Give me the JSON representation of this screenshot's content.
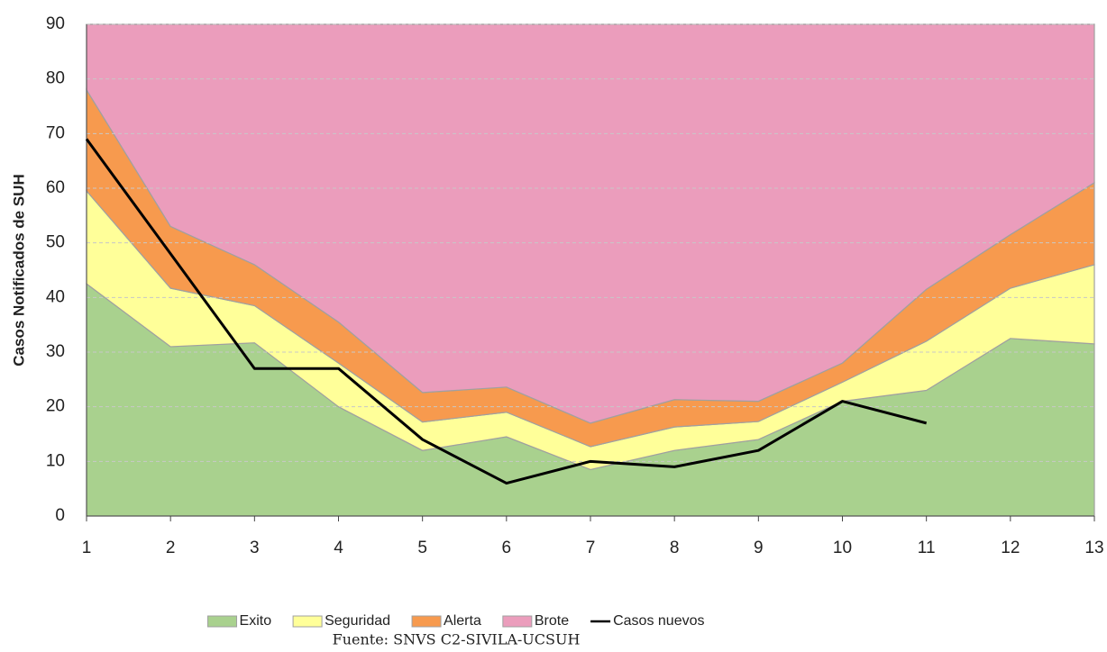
{
  "chart_data": {
    "type": "area",
    "stacked": true,
    "y_label": "Casos  Notificados  de SUH",
    "source": "Fuente: SNVS C2-SIVILA-UCSUH",
    "x": [
      1,
      2,
      3,
      4,
      5,
      6,
      7,
      8,
      9,
      10,
      11,
      12,
      13
    ],
    "xlim": [
      1,
      13
    ],
    "xticks": [
      1,
      2,
      3,
      4,
      5,
      6,
      7,
      8,
      9,
      10,
      11,
      12,
      13
    ],
    "ylim": [
      0,
      90
    ],
    "yticks": [
      0,
      10,
      20,
      30,
      40,
      50,
      60,
      70,
      80,
      90
    ],
    "grid": true,
    "legend": "bottom",
    "series": [
      {
        "name": "Exito",
        "color": "#a9d18e",
        "values": [
          42.5,
          31,
          31.7,
          20,
          12,
          14.5,
          8.5,
          12,
          14,
          21,
          23,
          32.5,
          31.5
        ]
      },
      {
        "name": "Seguridad",
        "color": "#ffff99",
        "values": [
          17,
          10.7,
          6.8,
          8,
          5.2,
          4.5,
          4.2,
          4.3,
          3.3,
          3.5,
          9,
          9.2,
          14.5
        ]
      },
      {
        "name": "Alerta",
        "color": "#f79a4e",
        "values": [
          18.5,
          11.3,
          7.5,
          7.5,
          5.4,
          4.6,
          4.3,
          5,
          3.7,
          3.5,
          9.5,
          9.8,
          15
        ]
      },
      {
        "name": "Brote",
        "color": "#eb9dbc",
        "values": [
          12,
          37,
          44,
          54.5,
          67.4,
          66.4,
          73,
          68.7,
          69,
          62,
          48.5,
          38.5,
          29
        ]
      },
      {
        "name": "Casos nuevos",
        "color": "#000000",
        "type": "line",
        "values": [
          69,
          48,
          27,
          27,
          14,
          6,
          10,
          9,
          12,
          21,
          17,
          null,
          null
        ]
      }
    ]
  }
}
